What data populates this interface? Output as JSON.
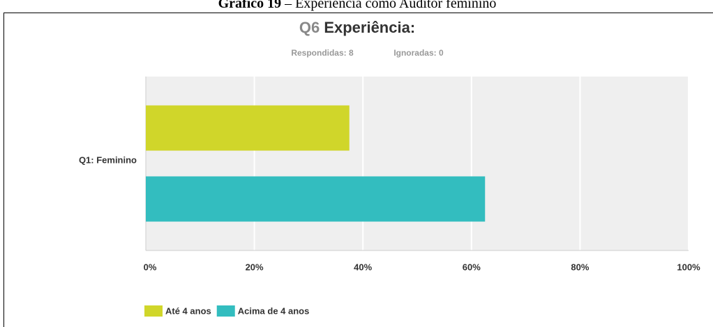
{
  "caption": {
    "label": "Gráfico 19",
    "text": "– Experiência como Auditor feminino"
  },
  "chart_data": {
    "type": "hbar",
    "question": "Q6",
    "title": "Experiência:",
    "subtitle": [
      "Respondidas: 8",
      "Ignoradas: 0"
    ],
    "categories": [
      "Q1: Feminino"
    ],
    "series": [
      {
        "name": "Até 4 anos",
        "color": "#d0d62a",
        "values": [
          37.5
        ]
      },
      {
        "name": "Acima de 4 anos",
        "color": "#33bdbf",
        "values": [
          62.5
        ]
      }
    ],
    "xlim": [
      0,
      100
    ],
    "xticks": [
      {
        "value": 0,
        "label": "0%"
      },
      {
        "value": 20,
        "label": "20%"
      },
      {
        "value": 40,
        "label": "40%"
      },
      {
        "value": 60,
        "label": "60%"
      },
      {
        "value": 80,
        "label": "80%"
      },
      {
        "value": 100,
        "label": "100%"
      }
    ],
    "grid": true
  }
}
